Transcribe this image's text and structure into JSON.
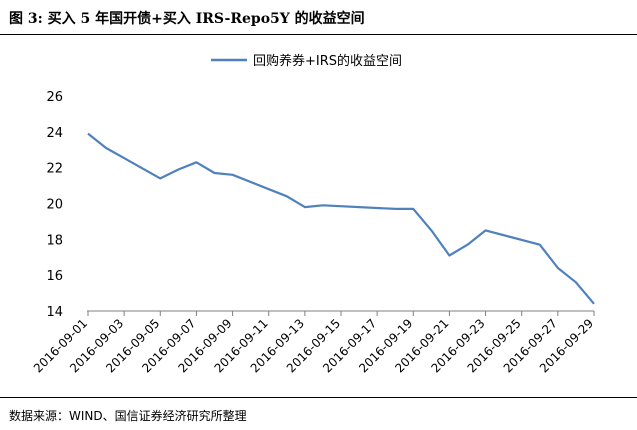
{
  "caption": "图 3:  买入 5 年国开债+买入 IRS-Repo5Y 的收益空间",
  "source": "数据来源：WIND、国信证券经济研究所整理",
  "chart_data": {
    "type": "line",
    "title": "",
    "xlabel": "",
    "ylabel": "",
    "ylim": [
      14,
      26
    ],
    "yticks": [
      14,
      16,
      18,
      20,
      22,
      24,
      26
    ],
    "grid": false,
    "legend_position": "top",
    "line_color": "#4F81BD",
    "x_tick_labels": [
      "2016-09-01",
      "2016-09-03",
      "2016-09-05",
      "2016-09-07",
      "2016-09-09",
      "2016-09-11",
      "2016-09-13",
      "2016-09-15",
      "2016-09-17",
      "2016-09-19",
      "2016-09-21",
      "2016-09-23",
      "2016-09-25",
      "2016-09-27",
      "2016-09-29"
    ],
    "series": [
      {
        "name": "回购养券+IRS的收益空间",
        "x": [
          "2016-09-01",
          "2016-09-02",
          "2016-09-05",
          "2016-09-06",
          "2016-09-07",
          "2016-09-08",
          "2016-09-09",
          "2016-09-12",
          "2016-09-13",
          "2016-09-14",
          "2016-09-18",
          "2016-09-19",
          "2016-09-20",
          "2016-09-21",
          "2016-09-22",
          "2016-09-23",
          "2016-09-26",
          "2016-09-27",
          "2016-09-28",
          "2016-09-29"
        ],
        "values": [
          23.9,
          23.1,
          21.4,
          21.9,
          22.3,
          21.7,
          21.6,
          20.4,
          19.8,
          19.9,
          19.7,
          19.7,
          18.5,
          17.1,
          17.7,
          18.5,
          17.7,
          16.4,
          15.6,
          14.4
        ]
      }
    ]
  }
}
